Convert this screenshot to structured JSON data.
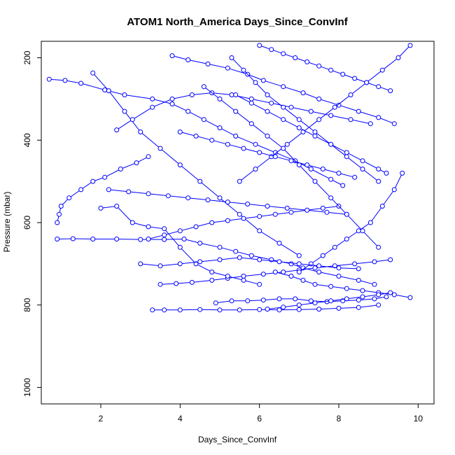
{
  "chart_data": {
    "type": "line",
    "title": "ATOM1 North_America Days_Since_ConvInf",
    "xlabel": "Days_Since_ConvInf",
    "ylabel": "Pressure (mbar)",
    "xlim": [
      0.5,
      10.4
    ],
    "ylim": [
      1040,
      160
    ],
    "y_reversed": true,
    "xticks": [
      2,
      4,
      6,
      8,
      10
    ],
    "yticks": [
      200,
      400,
      600,
      800,
      1000
    ],
    "grid": false,
    "marker": "open-circle",
    "color": "#0000ff",
    "series": [
      {
        "x": [
          0.7,
          1.1,
          1.5,
          2.1,
          2.6,
          3.3,
          3.8,
          4.2,
          4.6,
          5.0,
          5.4,
          5.9,
          6.4,
          6.9,
          7.3,
          7.8,
          8.1
        ],
        "y": [
          252,
          255,
          262,
          278,
          290,
          300,
          312,
          330,
          350,
          370,
          390,
          410,
          430,
          450,
          470,
          495,
          510
        ]
      },
      {
        "x": [
          0.9,
          1.3,
          1.8,
          2.4,
          3.0,
          3.6,
          4.1,
          4.5,
          5.0,
          5.4,
          5.8,
          6.3,
          6.8,
          7.1,
          7.5,
          8.0,
          8.5,
          8.9
        ],
        "y": [
          640,
          639,
          640,
          640,
          641,
          641,
          640,
          650,
          660,
          670,
          680,
          690,
          700,
          710,
          720,
          730,
          740,
          750
        ]
      },
      {
        "x": [
          0.9,
          0.95,
          1.0,
          1.2,
          1.5,
          1.8,
          2.1,
          2.5,
          2.9,
          3.2
        ],
        "y": [
          600,
          580,
          560,
          540,
          520,
          500,
          490,
          470,
          455,
          440
        ]
      },
      {
        "x": [
          3.3,
          3.6,
          4.0,
          4.5,
          5.0,
          5.5,
          6.0,
          6.5,
          7.0,
          7.5,
          8.0,
          8.5,
          9.0
        ],
        "y": [
          812,
          812,
          812,
          811,
          812,
          812,
          811,
          812,
          811,
          810,
          808,
          806,
          800
        ]
      },
      {
        "x": [
          1.8,
          2.2,
          2.6,
          3.0,
          3.5,
          4.0,
          4.5,
          5.0,
          5.5,
          6.0,
          6.5,
          7.0
        ],
        "y": [
          237,
          280,
          330,
          380,
          420,
          460,
          500,
          540,
          580,
          620,
          650,
          680
        ]
      },
      {
        "x": [
          2.4,
          2.8,
          3.3,
          3.8,
          4.3,
          4.8,
          5.3,
          5.8,
          6.3,
          6.8,
          7.3,
          7.8,
          8.3,
          8.8
        ],
        "y": [
          375,
          350,
          320,
          300,
          290,
          285,
          290,
          300,
          310,
          320,
          330,
          340,
          350,
          360
        ]
      },
      {
        "x": [
          3.5,
          3.9,
          4.3,
          4.8,
          5.2,
          5.6,
          6.1,
          6.6,
          7.0,
          7.4,
          7.9,
          8.4,
          8.9,
          9.3
        ],
        "y": [
          750,
          748,
          745,
          740,
          735,
          730,
          725,
          720,
          715,
          710,
          705,
          700,
          695,
          690
        ]
      },
      {
        "x": [
          3.8,
          4.2,
          4.7,
          5.2,
          5.7,
          6.1,
          6.6,
          7.1,
          7.5,
          8.0,
          8.5,
          9.0,
          9.4
        ],
        "y": [
          195,
          205,
          215,
          225,
          240,
          255,
          270,
          285,
          300,
          315,
          330,
          345,
          360
        ]
      },
      {
        "x": [
          5.3,
          5.6,
          5.9,
          6.2,
          6.6,
          7.0,
          7.4,
          7.8,
          8.2,
          8.6,
          9.0
        ],
        "y": [
          200,
          230,
          260,
          290,
          320,
          350,
          380,
          410,
          440,
          470,
          500
        ]
      },
      {
        "x": [
          6.4,
          6.8,
          7.1,
          7.4,
          7.8,
          8.2,
          8.6,
          9.0,
          9.4,
          9.8
        ],
        "y": [
          720,
          730,
          740,
          750,
          755,
          760,
          765,
          770,
          775,
          782
        ]
      },
      {
        "x": [
          2.2,
          2.7,
          3.2,
          3.7,
          4.2,
          4.7,
          5.2,
          5.7,
          6.2,
          6.7,
          7.2,
          7.7,
          8.2
        ],
        "y": [
          520,
          525,
          530,
          535,
          540,
          545,
          550,
          555,
          560,
          565,
          570,
          575,
          580
        ]
      },
      {
        "x": [
          9.8,
          9.5,
          9.1,
          8.7,
          8.3,
          7.9,
          7.5,
          7.1,
          6.7,
          6.3,
          5.9,
          5.5
        ],
        "y": [
          170,
          200,
          230,
          260,
          290,
          320,
          350,
          380,
          410,
          440,
          470,
          500
        ]
      },
      {
        "x": [
          4.9,
          5.3,
          5.7,
          6.1,
          6.5,
          6.9,
          7.3,
          7.7,
          8.1,
          8.5,
          8.9,
          9.2
        ],
        "y": [
          795,
          790,
          790,
          788,
          785,
          785,
          790,
          792,
          790,
          788,
          785,
          780
        ]
      },
      {
        "x": [
          3.2,
          3.6,
          4.0,
          4.4,
          4.8,
          5.2,
          5.6,
          6.0,
          6.4,
          6.8,
          7.2,
          7.6,
          8.0
        ],
        "y": [
          640,
          630,
          620,
          610,
          600,
          595,
          590,
          585,
          580,
          575,
          570,
          565,
          560
        ]
      },
      {
        "x": [
          6.0,
          6.3,
          6.6,
          6.9,
          7.2,
          7.5,
          7.8,
          8.1,
          8.4,
          8.7,
          9.0,
          9.3
        ],
        "y": [
          170,
          180,
          190,
          200,
          210,
          220,
          230,
          240,
          250,
          260,
          270,
          280
        ]
      },
      {
        "x": [
          2.0,
          2.4,
          2.8,
          3.2,
          3.6,
          4.0,
          4.4,
          4.8,
          5.2,
          5.6,
          6.0
        ],
        "y": [
          565,
          560,
          600,
          610,
          615,
          660,
          700,
          720,
          730,
          740,
          750
        ]
      },
      {
        "x": [
          7.0,
          7.3,
          7.6,
          7.9,
          8.2,
          8.5,
          8.8,
          9.1,
          9.4,
          9.6
        ],
        "y": [
          720,
          700,
          680,
          660,
          640,
          620,
          600,
          560,
          520,
          480
        ]
      },
      {
        "x": [
          4.0,
          4.4,
          4.8,
          5.2,
          5.6,
          6.0,
          6.4,
          6.8,
          7.2,
          7.6,
          8.0,
          8.4
        ],
        "y": [
          380,
          390,
          400,
          410,
          420,
          430,
          440,
          450,
          460,
          470,
          480,
          490
        ]
      },
      {
        "x": [
          5.4,
          5.8,
          6.2,
          6.6,
          7.0,
          7.4,
          7.8,
          8.2,
          8.6,
          9.0,
          9.2
        ],
        "y": [
          290,
          310,
          330,
          350,
          370,
          390,
          410,
          430,
          450,
          470,
          480
        ]
      },
      {
        "x": [
          3.0,
          3.5,
          4.0,
          4.5,
          5.0,
          5.5,
          6.0,
          6.5,
          7.0,
          7.5,
          8.0,
          8.5
        ],
        "y": [
          700,
          705,
          700,
          695,
          690,
          685,
          690,
          695,
          700,
          705,
          710,
          712
        ]
      },
      {
        "x": [
          4.6,
          5.0,
          5.4,
          5.8,
          6.2,
          6.6,
          7.0,
          7.4,
          7.8,
          8.2,
          8.6,
          9.0
        ],
        "y": [
          270,
          300,
          330,
          360,
          390,
          420,
          460,
          500,
          540,
          580,
          620,
          660
        ]
      },
      {
        "x": [
          6.2,
          6.6,
          7.0,
          7.4,
          7.8,
          8.2,
          8.6,
          9.0,
          9.3
        ],
        "y": [
          810,
          805,
          800,
          795,
          790,
          785,
          780,
          775,
          770
        ]
      }
    ]
  }
}
